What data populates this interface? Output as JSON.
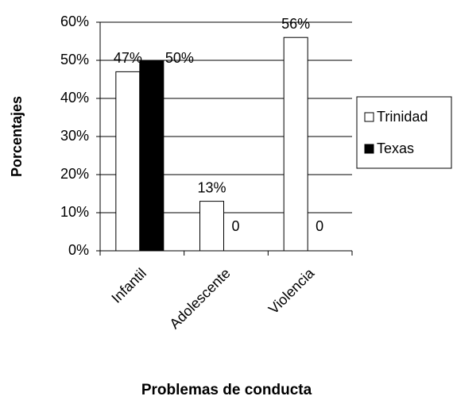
{
  "chart_data": {
    "type": "bar",
    "y_label": "Porcentajes",
    "x_label": "Problemas de conducta",
    "categories": [
      "Infantil",
      "Adolescente",
      "Violencia"
    ],
    "series": [
      {
        "name": "Trinidad",
        "color": "#ffffff",
        "values": [
          47,
          13,
          56
        ],
        "value_labels": [
          "47%",
          "13%",
          "56%"
        ]
      },
      {
        "name": "Texas",
        "color": "#000000",
        "values": [
          50,
          0,
          0
        ],
        "value_labels": [
          "50%",
          "0",
          "0"
        ]
      }
    ],
    "ylim": [
      0,
      60
    ],
    "yticks": [
      {
        "value": 0,
        "label": "0%"
      },
      {
        "value": 10,
        "label": "10%"
      },
      {
        "value": 20,
        "label": "20%"
      },
      {
        "value": 30,
        "label": "30%"
      },
      {
        "value": 40,
        "label": "40%"
      },
      {
        "value": 50,
        "label": "50%"
      },
      {
        "value": 60,
        "label": "60%"
      }
    ],
    "grid": true,
    "legend": "right"
  }
}
